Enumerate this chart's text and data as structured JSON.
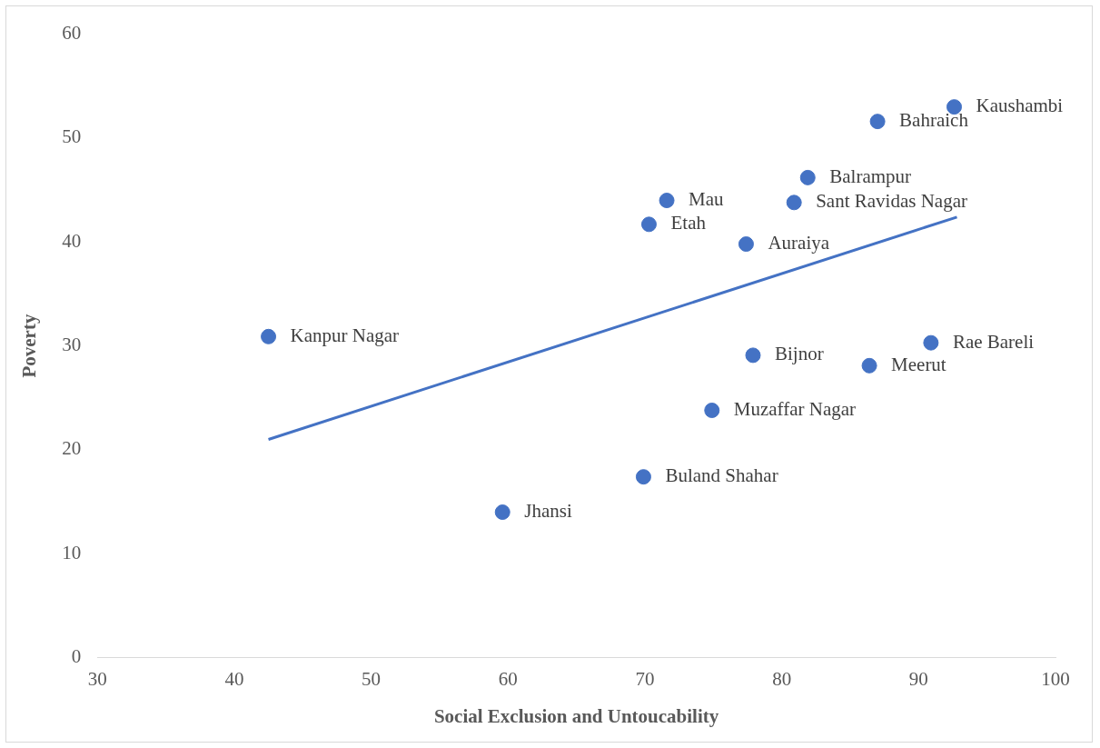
{
  "chart_data": {
    "type": "scatter",
    "xlabel": "Social Exclusion and Untoucability",
    "ylabel": "Poverty",
    "xlim": [
      30,
      100
    ],
    "xticks": [
      30,
      40,
      50,
      60,
      70,
      80,
      90,
      100
    ],
    "ylim": [
      0,
      60
    ],
    "yticks": [
      0,
      10,
      20,
      30,
      40,
      50,
      60
    ],
    "grid": false,
    "legend": false,
    "series": [
      {
        "marker": "circle",
        "color": "#4472c4",
        "x": [
          92.6,
          87.0,
          81.9,
          71.6,
          80.9,
          70.3,
          77.4,
          42.5,
          77.9,
          90.9,
          86.4,
          74.9,
          69.9,
          59.6
        ],
        "values": [
          53.0,
          51.6,
          46.2,
          44.0,
          43.8,
          41.7,
          39.8,
          30.9,
          29.1,
          30.3,
          28.1,
          23.8,
          17.4,
          14.0
        ],
        "value_labels": [
          "Kaushambi",
          "Bahraich",
          "Balrampur",
          "Mau",
          "Sant Ravidas Nagar",
          "Etah",
          "Auraiya",
          "Kanpur Nagar",
          "Bijnor",
          "Rae Bareli",
          "Meerut",
          "Muzaffar Nagar",
          "Buland Shahar",
          "Jhansi"
        ]
      },
      {
        "type": "line",
        "color": "#4472c4",
        "x": [
          42.5,
          92.8
        ],
        "values": [
          21.0,
          42.4
        ],
        "line_style": "solid",
        "marker": "none"
      }
    ]
  }
}
